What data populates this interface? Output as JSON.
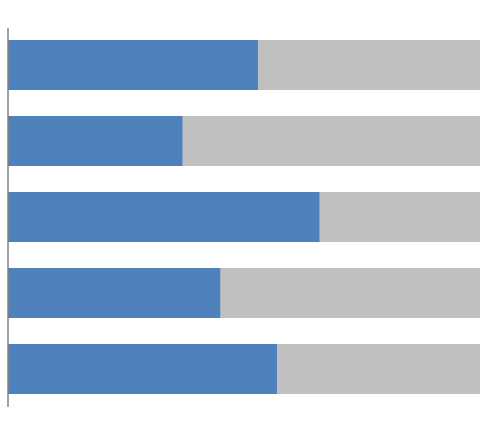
{
  "chart_data": {
    "type": "bar",
    "orientation": "horizontal",
    "stacked": true,
    "title": "",
    "xlabel": "",
    "ylabel": "",
    "xlim": [
      0,
      1
    ],
    "grid": false,
    "legend": "none",
    "series": [
      {
        "color": "#4f81bd",
        "values": [
          0.53,
          0.37,
          0.66,
          0.45,
          0.57
        ]
      },
      {
        "color": "#c0c0c0",
        "values": [
          0.47,
          0.63,
          0.34,
          0.55,
          0.43
        ]
      }
    ]
  }
}
